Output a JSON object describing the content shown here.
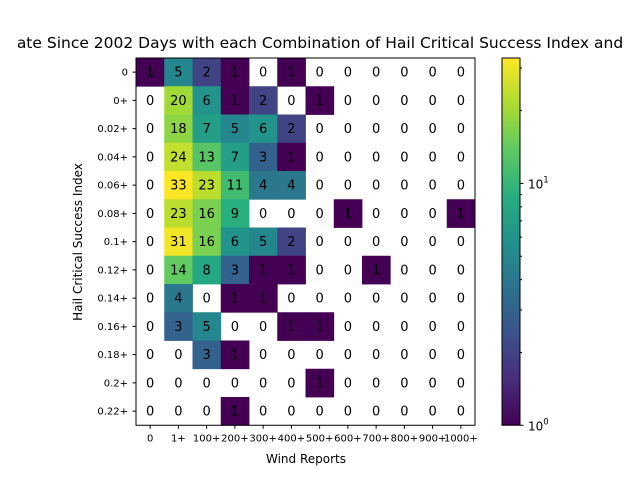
{
  "chart_data": {
    "type": "heatmap",
    "title": "ate Since 2002 Days with each Combination of Hail Critical Success Index and",
    "xlabel": "Wind Reports",
    "ylabel": "Hail Critical Success Index",
    "x_categories": [
      "0",
      "1+",
      "100+",
      "200+",
      "300+",
      "400+",
      "500+",
      "600+",
      "700+",
      "800+",
      "900+",
      "1000+"
    ],
    "y_categories": [
      "0",
      "0+",
      "0.02+",
      "0.04+",
      "0.06+",
      "0.08+",
      "0.1+",
      "0.12+",
      "0.14+",
      "0.16+",
      "0.18+",
      "0.2+",
      "0.22+"
    ],
    "values": [
      [
        1,
        5,
        2,
        1,
        0,
        1,
        0,
        0,
        0,
        0,
        0,
        0
      ],
      [
        0,
        20,
        6,
        1,
        2,
        0,
        1,
        0,
        0,
        0,
        0,
        0
      ],
      [
        0,
        18,
        7,
        5,
        6,
        2,
        0,
        0,
        0,
        0,
        0,
        0
      ],
      [
        0,
        24,
        13,
        7,
        3,
        1,
        0,
        0,
        0,
        0,
        0,
        0
      ],
      [
        0,
        33,
        23,
        11,
        4,
        4,
        0,
        0,
        0,
        0,
        0,
        0
      ],
      [
        0,
        23,
        16,
        9,
        0,
        0,
        0,
        1,
        0,
        0,
        0,
        1
      ],
      [
        0,
        31,
        16,
        6,
        5,
        2,
        0,
        0,
        0,
        0,
        0,
        0
      ],
      [
        0,
        14,
        8,
        3,
        1,
        1,
        0,
        0,
        1,
        0,
        0,
        0
      ],
      [
        0,
        4,
        0,
        1,
        1,
        0,
        0,
        0,
        0,
        0,
        0,
        0
      ],
      [
        0,
        3,
        5,
        0,
        0,
        1,
        1,
        0,
        0,
        0,
        0,
        0
      ],
      [
        0,
        0,
        3,
        1,
        0,
        0,
        0,
        0,
        0,
        0,
        0,
        0
      ],
      [
        0,
        0,
        0,
        0,
        0,
        0,
        1,
        0,
        0,
        0,
        0,
        0
      ],
      [
        0,
        0,
        0,
        1,
        0,
        0,
        0,
        0,
        0,
        0,
        0,
        0
      ]
    ],
    "colorbar": {
      "scale": "log",
      "range": [
        1,
        33
      ],
      "colormap": "viridis",
      "major_ticks": [
        {
          "value": 1,
          "base": "10",
          "exp": "0"
        },
        {
          "value": 10,
          "base": "10",
          "exp": "1"
        }
      ],
      "minor_ticks": [
        2,
        3,
        4,
        5,
        6,
        7,
        8,
        9,
        20,
        30
      ]
    },
    "zero_cells": "blank"
  }
}
